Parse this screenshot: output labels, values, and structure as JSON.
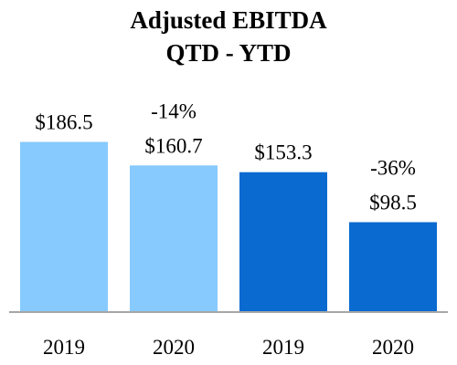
{
  "chart_data": {
    "type": "bar",
    "title": [
      "Adjusted EBITDA",
      "QTD - YTD"
    ],
    "categories": [
      "2019",
      "2020",
      "2019",
      "2020"
    ],
    "values": [
      186.5,
      160.7,
      153.3,
      98.5
    ],
    "value_labels": [
      "$186.5",
      "$160.7",
      "$153.3",
      "$98.5"
    ],
    "change_labels": [
      "",
      "-14%",
      "",
      "-36%"
    ],
    "bar_colors": [
      "#87CAFD",
      "#87CAFD",
      "#0A6AD0",
      "#0A6AD0"
    ],
    "ylim": [
      0,
      250
    ],
    "xlabel": "",
    "ylabel": "",
    "grid": false,
    "legend": "none"
  }
}
